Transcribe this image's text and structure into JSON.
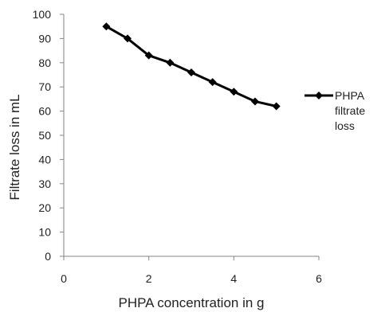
{
  "chart_data": {
    "type": "line",
    "title": "",
    "xlabel": "PHPA concentration in g",
    "ylabel": "Filtrate loss in mL",
    "xlim": [
      0,
      6
    ],
    "ylim": [
      0,
      100
    ],
    "x_ticks": [
      "0",
      "2",
      "4",
      "6"
    ],
    "y_ticks": [
      "0",
      "10",
      "20",
      "30",
      "40",
      "50",
      "60",
      "70",
      "80",
      "90",
      "100"
    ],
    "grid": false,
    "legend_position": "right",
    "series": [
      {
        "name": "PHPA filtrate loss",
        "legend_lines": [
          "PHPA",
          "filtrate",
          "loss"
        ],
        "color": "#000000",
        "marker": "diamond",
        "x": [
          1,
          1.5,
          2,
          2.5,
          3,
          3.5,
          4,
          4.5,
          5
        ],
        "y": [
          95,
          90,
          83,
          80,
          76,
          72,
          68,
          64,
          62
        ]
      }
    ]
  }
}
